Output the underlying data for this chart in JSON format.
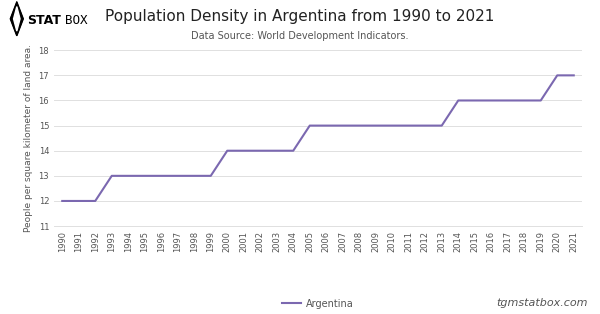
{
  "title": "Population Density in Argentina from 1990 to 2021",
  "subtitle": "Data Source: World Development Indicators.",
  "ylabel": "People per square kilometer of land area.",
  "legend_label": "Argentina",
  "watermark": "tgmstatbox.com",
  "years": [
    1990,
    1991,
    1992,
    1993,
    1994,
    1995,
    1996,
    1997,
    1998,
    1999,
    2000,
    2001,
    2002,
    2003,
    2004,
    2005,
    2006,
    2007,
    2008,
    2009,
    2010,
    2011,
    2012,
    2013,
    2014,
    2015,
    2016,
    2017,
    2018,
    2019,
    2020,
    2021
  ],
  "values": [
    12,
    12,
    12,
    13,
    13,
    13,
    13,
    13,
    13,
    13,
    14,
    14,
    14,
    14,
    14,
    15,
    15,
    15,
    15,
    15,
    15,
    15,
    15,
    15,
    16,
    16,
    16,
    16,
    16,
    16,
    17,
    17
  ],
  "line_color": "#7B68B0",
  "line_width": 1.5,
  "bg_color": "#ffffff",
  "plot_bg_color": "#ffffff",
  "grid_color": "#e0e0e0",
  "title_color": "#222222",
  "subtitle_color": "#555555",
  "ylabel_color": "#555555",
  "tick_color": "#555555",
  "ylim": [
    11,
    18
  ],
  "yticks": [
    11,
    12,
    13,
    14,
    15,
    16,
    17,
    18
  ],
  "logo_text": "STATBOX",
  "title_fontsize": 11,
  "subtitle_fontsize": 7,
  "ylabel_fontsize": 6.5,
  "tick_fontsize": 6,
  "legend_fontsize": 7,
  "watermark_fontsize": 8
}
